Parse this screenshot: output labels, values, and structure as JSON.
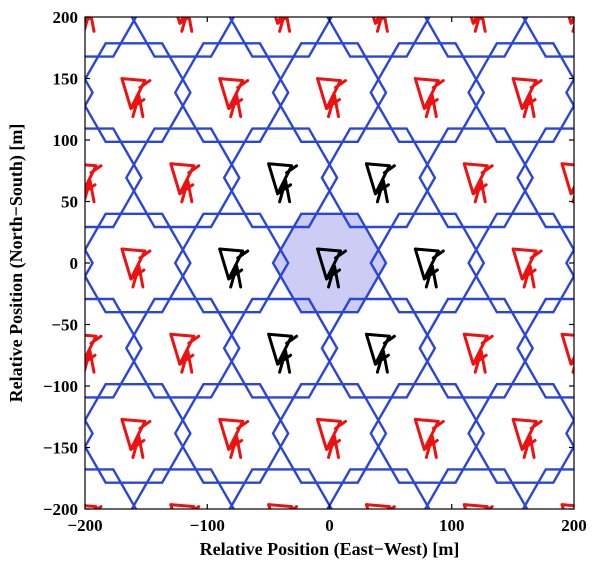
{
  "chart_data": {
    "type": "diagram",
    "xlabel": "Relative Position (East−West) [m]",
    "ylabel": "Relative Position (North−South) [m]",
    "xlim": [
      -200,
      200
    ],
    "ylim": [
      -200,
      200
    ],
    "x_ticks": [
      -200,
      -100,
      0,
      100,
      200
    ],
    "y_ticks": [
      -200,
      -150,
      -100,
      -50,
      0,
      50,
      100,
      150,
      200
    ],
    "x_tick_labels": [
      "−200",
      "−100",
      "0",
      "100",
      "200"
    ],
    "y_tick_labels": [
      "−200",
      "−150",
      "−100",
      "−50",
      "0",
      "50",
      "100",
      "150",
      "200"
    ],
    "grid": false,
    "hex_grid": {
      "cell_center_spacing_m": 80,
      "hexagon_radius_m": 46.19,
      "orientation": "flat-top",
      "edge_color": "#2a46d9",
      "highlighted_cell_center": [
        0,
        0
      ],
      "highlight_fill": "#ccccf5"
    },
    "antennas": {
      "serving_cell": [
        [
          0,
          0
        ]
      ],
      "first_tier": [
        [
          -80,
          0
        ],
        [
          80,
          0
        ],
        [
          -40,
          69.28
        ],
        [
          40,
          69.28
        ],
        [
          -40,
          -69.28
        ],
        [
          40,
          -69.28
        ]
      ],
      "colors": {
        "serving_and_first_tier": "#000000",
        "others": "#ee1111"
      }
    }
  }
}
